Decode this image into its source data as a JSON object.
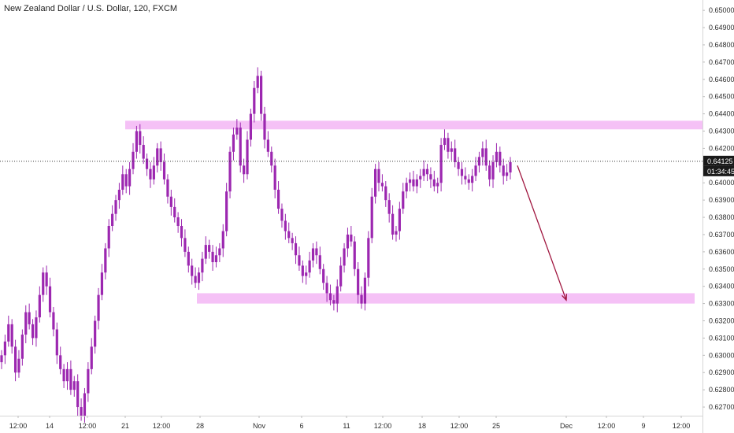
{
  "header": {
    "title": "New Zealand Dollar / U.S. Dollar, 120, FXCM"
  },
  "colors": {
    "candle": "#9c27b0",
    "zone": "#f3b6f5",
    "arrow": "#a0163f",
    "price_tag": "#1a1a1a",
    "axis_text": "#2c2c2c"
  },
  "chart_data": {
    "type": "candlestick",
    "title": "New Zealand Dollar / U.S. Dollar, 120, FXCM",
    "ylim": [
      0.6265,
      0.6506
    ],
    "y_ticks": [
      "0.65000",
      "0.64900",
      "0.64800",
      "0.64700",
      "0.64600",
      "0.64500",
      "0.64400",
      "0.64300",
      "0.64200",
      "0.64100",
      "0.64000",
      "0.63900",
      "0.63800",
      "0.63700",
      "0.63600",
      "0.63500",
      "0.63400",
      "0.63300",
      "0.63200",
      "0.63100",
      "0.63000",
      "0.62900",
      "0.62800",
      "0.62700"
    ],
    "x_ticks": [
      "12:00",
      "14",
      "12:00",
      "21",
      "12:00",
      "28",
      "Nov",
      "6",
      "11",
      "12:00",
      "18",
      "12:00",
      "25",
      "Dec",
      "12:00",
      "9",
      "12:00"
    ],
    "last_price": "0.64125",
    "countdown": "01:34:45",
    "resistance_zone": [
      0.6431,
      0.6436
    ],
    "support_zone": [
      0.633,
      0.6336
    ],
    "projection_arrow": {
      "from": 0.641,
      "to": 0.6332
    },
    "grid": false,
    "series": [
      {
        "name": "",
        "values": [
          0.63,
          0.6308,
          0.6318,
          0.6305,
          0.629,
          0.6298,
          0.6312,
          0.6325,
          0.6318,
          0.631,
          0.6322,
          0.6335,
          0.6348,
          0.634,
          0.6325,
          0.6315,
          0.63,
          0.6292,
          0.6285,
          0.6292,
          0.628,
          0.6285,
          0.627,
          0.6265,
          0.6278,
          0.6292,
          0.6305,
          0.632,
          0.6335,
          0.6348,
          0.6362,
          0.6375,
          0.6382,
          0.639,
          0.6396,
          0.6405,
          0.6398,
          0.6408,
          0.6418,
          0.643,
          0.6422,
          0.6414,
          0.6408,
          0.6402,
          0.641,
          0.642,
          0.6412,
          0.6402,
          0.6392,
          0.6386,
          0.638,
          0.6375,
          0.6368,
          0.636,
          0.6352,
          0.6346,
          0.6342,
          0.6348,
          0.6356,
          0.6364,
          0.636,
          0.6354,
          0.6358,
          0.6362,
          0.6372,
          0.6395,
          0.6418,
          0.6428,
          0.6432,
          0.641,
          0.6405,
          0.6425,
          0.644,
          0.6455,
          0.6462,
          0.644,
          0.6425,
          0.6418,
          0.641,
          0.6396,
          0.6385,
          0.6378,
          0.6372,
          0.6368,
          0.6365,
          0.6358,
          0.6352,
          0.6346,
          0.6348,
          0.6355,
          0.6362,
          0.6358,
          0.635,
          0.6342,
          0.6336,
          0.6332,
          0.633,
          0.634,
          0.6352,
          0.6362,
          0.637,
          0.6366,
          0.635,
          0.6335,
          0.633,
          0.6345,
          0.6368,
          0.6392,
          0.6408,
          0.64,
          0.6398,
          0.639,
          0.6382,
          0.637,
          0.6372,
          0.6385,
          0.6395,
          0.64,
          0.6402,
          0.6398,
          0.6402,
          0.6404,
          0.6408,
          0.6405,
          0.6402,
          0.6398,
          0.64,
          0.6422,
          0.6426,
          0.6418,
          0.642,
          0.6412,
          0.6408,
          0.6404,
          0.6402,
          0.64,
          0.6404,
          0.641,
          0.6415,
          0.642,
          0.641,
          0.6402,
          0.6412,
          0.6418,
          0.641,
          0.6404,
          0.6406,
          0.6412
        ]
      }
    ]
  }
}
